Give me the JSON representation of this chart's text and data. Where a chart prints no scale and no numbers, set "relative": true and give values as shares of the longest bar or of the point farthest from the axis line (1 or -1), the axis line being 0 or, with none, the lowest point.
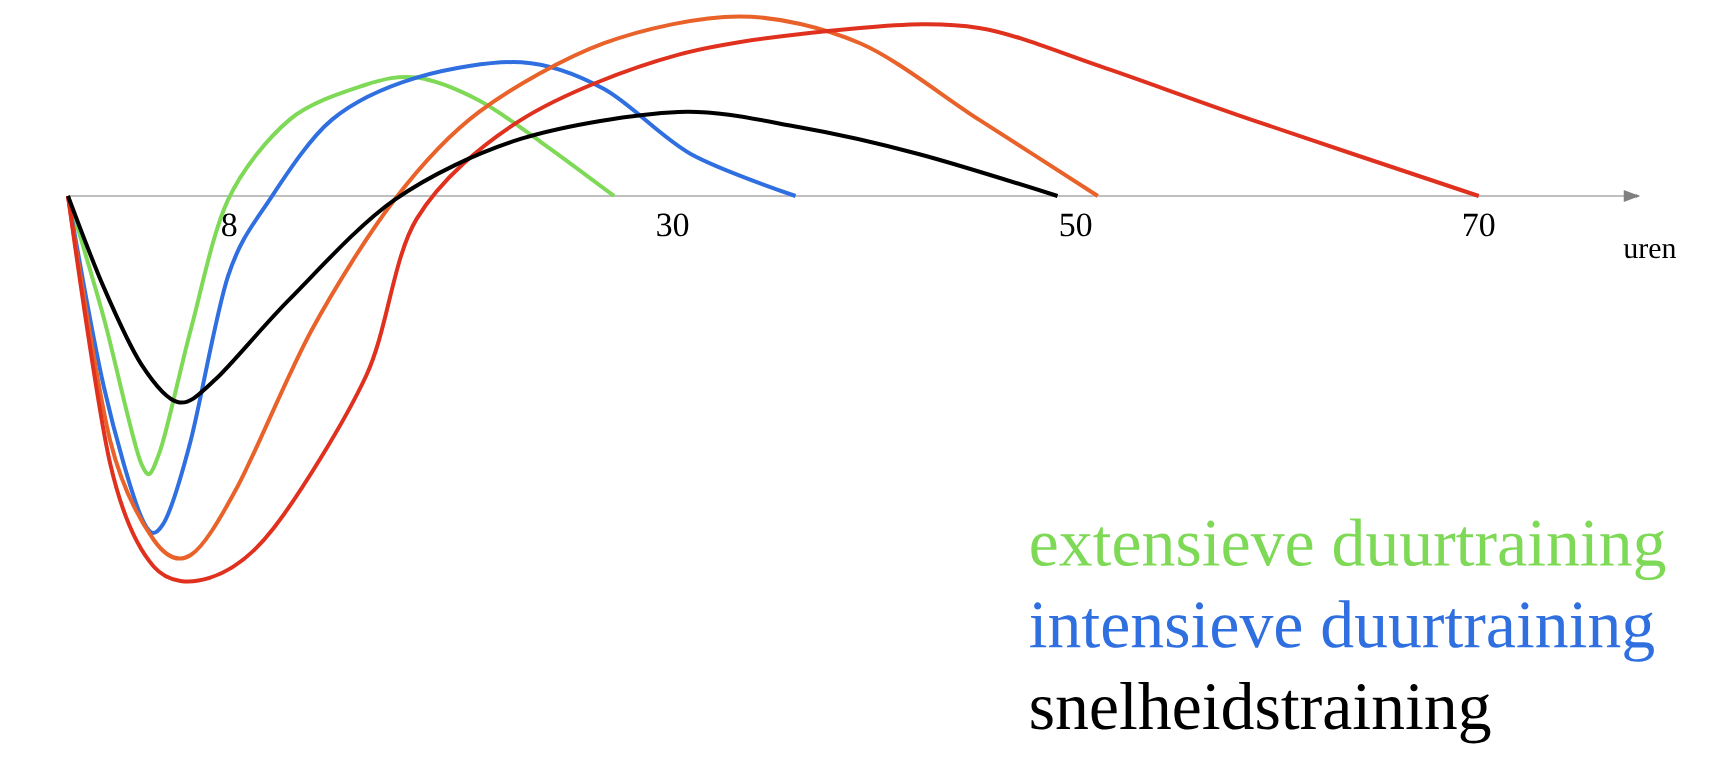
{
  "chart_data": {
    "type": "line",
    "relative": true,
    "xlabel": "uren",
    "xlim": [
      0,
      78
    ],
    "xticks": [
      8,
      30,
      50,
      70
    ],
    "legend": "bottom right",
    "grid": false,
    "marker": "none",
    "line_style": "solid",
    "series": [
      {
        "name": "extensieve duurtraining",
        "color": "#7ed957",
        "x": [
          0,
          1.78,
          3.63,
          4.55,
          6.09,
          7.94,
          11.0,
          14.7,
          17.3,
          20.4,
          23.5,
          27.1
        ],
        "values": [
          0,
          -0.32,
          -0.7,
          -0.67,
          -0.35,
          -0.01,
          0.2,
          0.29,
          0.31,
          0.25,
          0.14,
          0
        ]
      },
      {
        "name": "intensieve duurtraining",
        "color": "#2f6fe0",
        "x": [
          0,
          1.78,
          3.63,
          4.71,
          6.09,
          7.94,
          10.0,
          13.1,
          17.3,
          22.5,
          26.6,
          30.9,
          36.1
        ],
        "values": [
          0,
          -0.5,
          -0.84,
          -0.86,
          -0.64,
          -0.21,
          -0.01,
          0.2,
          0.31,
          0.35,
          0.28,
          0.11,
          0
        ]
      },
      {
        "color": "#e8622a",
        "x": [
          0,
          2.09,
          4.25,
          6.09,
          8.42,
          12.1,
          16.2,
          20.4,
          26.6,
          33.3,
          39.3,
          45.2,
          51.1
        ],
        "values": [
          0,
          -0.64,
          -0.9,
          -0.94,
          -0.76,
          -0.35,
          -0.01,
          0.22,
          0.4,
          0.47,
          0.4,
          0.2,
          0
        ]
      },
      {
        "color": "#e0301e",
        "x": [
          0,
          2.09,
          4.25,
          7.02,
          10.2,
          14.8,
          17.3,
          22.5,
          30.3,
          39.3,
          45.2,
          51.2,
          58.7,
          70
        ],
        "values": [
          0,
          -0.7,
          -0.97,
          -1,
          -0.87,
          -0.47,
          -0.06,
          0.2,
          0.37,
          0.44,
          0.44,
          0.34,
          0.2,
          0
        ]
      },
      {
        "name": "snelheidstraining",
        "color": "#000000",
        "x": [
          0,
          1.78,
          3.63,
          5.48,
          7.32,
          11.0,
          16.2,
          22.5,
          30.3,
          36.3,
          42.2,
          49.1
        ],
        "values": [
          0,
          -0.24,
          -0.44,
          -0.54,
          -0.48,
          -0.27,
          -0.01,
          0.15,
          0.22,
          0.18,
          0.11,
          0
        ]
      }
    ]
  }
}
